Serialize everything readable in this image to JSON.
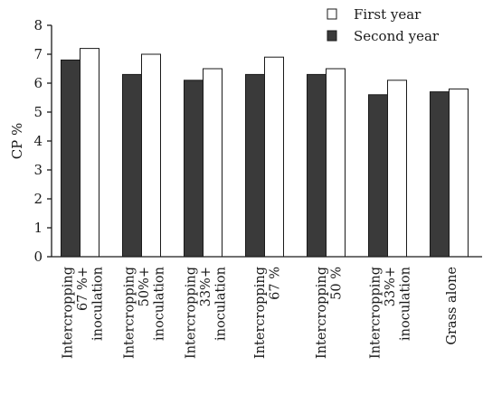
{
  "chart_data": {
    "type": "bar",
    "ylabel": "CP %",
    "xlabel": "",
    "ylim": [
      0,
      8
    ],
    "yticks": [
      "0",
      "1",
      "2",
      "3",
      "4",
      "5",
      "6",
      "7",
      "8"
    ],
    "grid": false,
    "legend_position": "top-right",
    "categories": [
      [
        "Intercropping",
        "67 %+",
        "inoculation"
      ],
      [
        "Intercropping",
        "50%+",
        "inoculation"
      ],
      [
        "Intercropping",
        "33%+",
        "inoculation"
      ],
      [
        "Intercropping",
        "67 %"
      ],
      [
        "Intercropping",
        "50 %"
      ],
      [
        "Intercropping",
        "33%+",
        "inoculation"
      ],
      [
        "Grass alone"
      ]
    ],
    "series": [
      {
        "name": "Second year",
        "color": "#3a3a3a",
        "values": [
          6.8,
          6.3,
          6.1,
          6.3,
          6.3,
          5.6,
          5.7
        ]
      },
      {
        "name": "First year",
        "color": "#ffffff",
        "values": [
          7.2,
          7.0,
          6.5,
          6.9,
          6.5,
          6.1,
          5.8
        ]
      }
    ],
    "legend": [
      {
        "name": "First year",
        "color": "#ffffff"
      },
      {
        "name": "Second year",
        "color": "#3a3a3a"
      }
    ]
  }
}
